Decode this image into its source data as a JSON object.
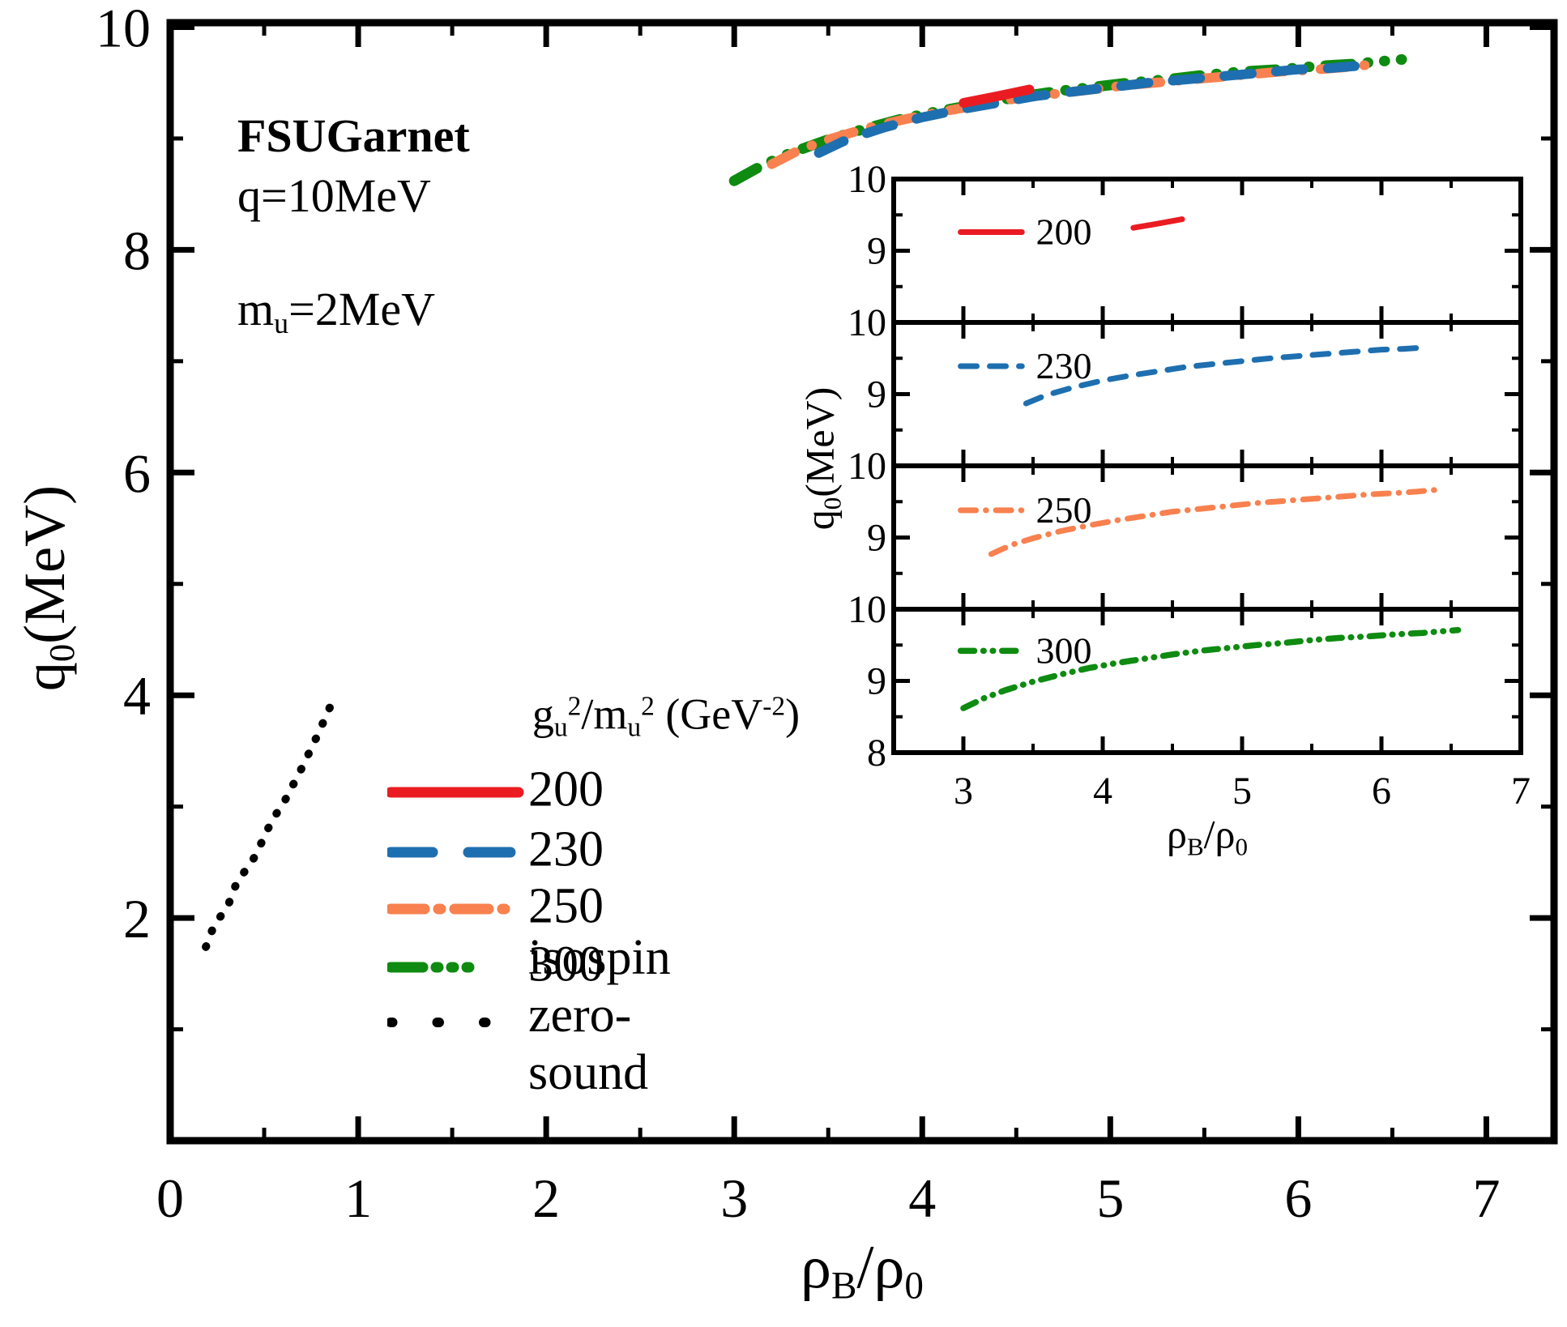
{
  "annotations": {
    "model": "FSUGarnet",
    "q": "q=10MeV",
    "mu": {
      "base": "m",
      "sub": "u",
      "rest": "=2MeV"
    }
  },
  "axes": {
    "x_label": {
      "rho1": "ρ",
      "sub1": "B",
      "slash": "/",
      "rho2": "ρ",
      "sub2": "0"
    },
    "y_label": {
      "base": "q",
      "sub": "0",
      "rest": "(MeV)"
    }
  },
  "legend": {
    "title": {
      "g": "g",
      "gsub": "u",
      "gsup": "2",
      "slash": "/",
      "m": "m",
      "msub": "u",
      "msup": "2",
      "unit": " (GeV",
      "usup": "-2",
      "uclose": ")"
    },
    "items": [
      {
        "label": "200",
        "color": "#ea1c22",
        "style": "solid"
      },
      {
        "label": "230",
        "color": "#1e6fb0",
        "style": "dash"
      },
      {
        "label": "250",
        "color": "#f8814f",
        "style": "dashdot"
      },
      {
        "label": "300",
        "color": "#0e8b10",
        "style": "dashdotdot"
      },
      {
        "label": "isospin zero-sound",
        "color": "#000000",
        "style": "dot"
      }
    ]
  },
  "chart_data": [
    {
      "id": "main",
      "type": "line",
      "title": "FSUGarnet, q=10MeV, m_u=2MeV",
      "xlabel": "rho_B/rho_0",
      "ylabel": "q_0(MeV)",
      "xlim": [
        0,
        7.36
      ],
      "ylim": [
        0,
        10.04
      ],
      "grid": false,
      "x_major_ticks": [
        0,
        1,
        2,
        3,
        4,
        5,
        6,
        7
      ],
      "x_minor_ticks": [
        0.5,
        1.5,
        2.5,
        3.5,
        4.5,
        5.5,
        6.5
      ],
      "y_major_ticks": [
        2,
        4,
        6,
        8,
        10
      ],
      "y_minor_ticks": [
        1,
        3,
        5,
        7,
        9
      ],
      "x_tick_labels": [
        "0",
        "1",
        "2",
        "3",
        "4",
        "5",
        "6",
        "7"
      ],
      "y_tick_labels": [
        "2",
        "4",
        "6",
        "8",
        "10"
      ],
      "series": [
        {
          "name": "300",
          "color": "#0e8b10",
          "style": "dashdotdot",
          "lw": 13,
          "points": [
            [
              3.0,
              8.62
            ],
            [
              3.15,
              8.76
            ],
            [
              3.3,
              8.87
            ],
            [
              3.5,
              8.99
            ],
            [
              3.7,
              9.09
            ],
            [
              3.9,
              9.18
            ],
            [
              4.1,
              9.25
            ],
            [
              4.3,
              9.31
            ],
            [
              4.5,
              9.37
            ],
            [
              4.7,
              9.42
            ],
            [
              4.9,
              9.46
            ],
            [
              5.1,
              9.5
            ],
            [
              5.3,
              9.53
            ],
            [
              5.5,
              9.57
            ],
            [
              5.7,
              9.6
            ],
            [
              5.9,
              9.62
            ],
            [
              6.1,
              9.65
            ],
            [
              6.3,
              9.67
            ],
            [
              6.42,
              9.69
            ],
            [
              6.55,
              9.71
            ]
          ]
        },
        {
          "name": "250",
          "color": "#f8814f",
          "style": "dashdot",
          "lw": 12,
          "points": [
            [
              3.2,
              8.77
            ],
            [
              3.35,
              8.9
            ],
            [
              3.5,
              8.99
            ],
            [
              3.7,
              9.09
            ],
            [
              3.9,
              9.17
            ],
            [
              4.1,
              9.24
            ],
            [
              4.3,
              9.3
            ],
            [
              4.5,
              9.36
            ],
            [
              4.7,
              9.4
            ],
            [
              4.9,
              9.44
            ],
            [
              5.1,
              9.48
            ],
            [
              5.3,
              9.51
            ],
            [
              5.5,
              9.54
            ],
            [
              5.7,
              9.57
            ],
            [
              5.9,
              9.6
            ],
            [
              6.1,
              9.62
            ],
            [
              6.25,
              9.64
            ],
            [
              6.42,
              9.67
            ]
          ]
        },
        {
          "name": "230",
          "color": "#1e6fb0",
          "style": "dash",
          "lw": 12,
          "points": [
            [
              3.45,
              8.87
            ],
            [
              3.6,
              8.99
            ],
            [
              3.8,
              9.1
            ],
            [
              4.0,
              9.19
            ],
            [
              4.2,
              9.26
            ],
            [
              4.4,
              9.32
            ],
            [
              4.6,
              9.38
            ],
            [
              4.8,
              9.42
            ],
            [
              5.0,
              9.46
            ],
            [
              5.2,
              9.5
            ],
            [
              5.4,
              9.53
            ],
            [
              5.6,
              9.56
            ],
            [
              5.8,
              9.59
            ],
            [
              6.0,
              9.62
            ],
            [
              6.15,
              9.63
            ],
            [
              6.3,
              9.65
            ]
          ]
        },
        {
          "name": "200",
          "color": "#ea1c22",
          "style": "solid",
          "lw": 12,
          "points": [
            [
              4.22,
              9.32
            ],
            [
              4.4,
              9.38
            ],
            [
              4.57,
              9.44
            ]
          ]
        },
        {
          "name": "isospin zero-sound",
          "color": "#000000",
          "style": "dot",
          "lw": 10,
          "points": [
            [
              0.19,
              1.74
            ],
            [
              0.23,
              1.92
            ],
            [
              0.27,
              2.02
            ],
            [
              0.31,
              2.12
            ],
            [
              0.35,
              2.3
            ],
            [
              0.38,
              2.38
            ],
            [
              0.44,
              2.52
            ],
            [
              0.47,
              2.62
            ],
            [
              0.52,
              2.8
            ],
            [
              0.55,
              2.9
            ],
            [
              0.6,
              3.02
            ],
            [
              0.63,
              3.12
            ],
            [
              0.68,
              3.28
            ],
            [
              0.71,
              3.38
            ],
            [
              0.76,
              3.56
            ],
            [
              0.79,
              3.66
            ],
            [
              0.83,
              3.82
            ],
            [
              0.86,
              3.93
            ]
          ]
        }
      ]
    },
    {
      "id": "inset",
      "type": "line-panels",
      "xlabel": "rho_B/rho_0",
      "ylabel": "q_0(MeV)",
      "xlim": [
        2.5,
        7
      ],
      "panel_ylim": [
        8,
        10
      ],
      "grid": false,
      "x_major_ticks": [
        3,
        4,
        5,
        6,
        7
      ],
      "x_minor_ticks": [
        3.5,
        4.5,
        5.5,
        6.5
      ],
      "y_major_ticks": [
        9
      ],
      "y_minor_ticks": [
        8.5,
        9.5
      ],
      "x_tick_labels": [
        "3",
        "4",
        "5",
        "6",
        "7"
      ],
      "y_tick_label_top": "10",
      "y_tick_label_mid": "9",
      "y_tick_label_bottom": "8",
      "panels": [
        {
          "name": "200",
          "color": "#ea1c22",
          "style": "solid",
          "lw": 7,
          "sample_x": [
            2.98,
            3.42
          ],
          "label_x": 3.52,
          "label_y": 9.26,
          "points": [
            [
              4.22,
              9.32
            ],
            [
              4.4,
              9.38
            ],
            [
              4.57,
              9.44
            ]
          ]
        },
        {
          "name": "230",
          "color": "#1e6fb0",
          "style": "dash",
          "lw": 7,
          "sample_x": [
            2.98,
            3.42
          ],
          "label_x": 3.52,
          "label_y": 9.39,
          "points": [
            [
              3.45,
              8.87
            ],
            [
              3.6,
              8.99
            ],
            [
              3.8,
              9.1
            ],
            [
              4.0,
              9.19
            ],
            [
              4.2,
              9.26
            ],
            [
              4.4,
              9.32
            ],
            [
              4.6,
              9.38
            ],
            [
              4.8,
              9.42
            ],
            [
              5.0,
              9.46
            ],
            [
              5.2,
              9.5
            ],
            [
              5.4,
              9.53
            ],
            [
              5.6,
              9.56
            ],
            [
              5.8,
              9.59
            ],
            [
              6.0,
              9.62
            ],
            [
              6.15,
              9.63
            ],
            [
              6.3,
              9.65
            ]
          ]
        },
        {
          "name": "250",
          "color": "#f8814f",
          "style": "dashdot",
          "lw": 7,
          "sample_x": [
            2.98,
            3.42
          ],
          "label_x": 3.52,
          "label_y": 9.38,
          "points": [
            [
              3.2,
              8.77
            ],
            [
              3.35,
              8.9
            ],
            [
              3.5,
              8.99
            ],
            [
              3.7,
              9.09
            ],
            [
              3.9,
              9.17
            ],
            [
              4.1,
              9.24
            ],
            [
              4.3,
              9.3
            ],
            [
              4.5,
              9.36
            ],
            [
              4.7,
              9.4
            ],
            [
              4.9,
              9.44
            ],
            [
              5.1,
              9.48
            ],
            [
              5.3,
              9.51
            ],
            [
              5.5,
              9.54
            ],
            [
              5.7,
              9.57
            ],
            [
              5.9,
              9.6
            ],
            [
              6.1,
              9.62
            ],
            [
              6.25,
              9.64
            ],
            [
              6.42,
              9.67
            ]
          ]
        },
        {
          "name": "300",
          "color": "#0e8b10",
          "style": "dashdotdot",
          "lw": 7.5,
          "sample_x": [
            2.98,
            3.42
          ],
          "label_x": 3.52,
          "label_y": 9.42,
          "points": [
            [
              3.0,
              8.62
            ],
            [
              3.15,
              8.76
            ],
            [
              3.3,
              8.87
            ],
            [
              3.5,
              8.99
            ],
            [
              3.7,
              9.09
            ],
            [
              3.9,
              9.18
            ],
            [
              4.1,
              9.25
            ],
            [
              4.3,
              9.31
            ],
            [
              4.5,
              9.37
            ],
            [
              4.7,
              9.42
            ],
            [
              4.9,
              9.46
            ],
            [
              5.1,
              9.5
            ],
            [
              5.3,
              9.53
            ],
            [
              5.5,
              9.57
            ],
            [
              5.7,
              9.6
            ],
            [
              5.9,
              9.62
            ],
            [
              6.1,
              9.65
            ],
            [
              6.3,
              9.67
            ],
            [
              6.42,
              9.69
            ],
            [
              6.55,
              9.71
            ]
          ]
        }
      ]
    }
  ]
}
